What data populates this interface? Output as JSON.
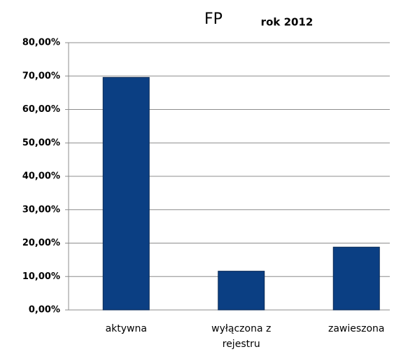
{
  "chart_data": {
    "type": "bar",
    "title": "FP",
    "subtitle": "rok 2012",
    "categories": [
      "aktywna",
      "wyłączona z rejestru",
      "zawieszona"
    ],
    "values": [
      69.6,
      11.6,
      18.8
    ],
    "color": "#0b3f83",
    "ylim": [
      0,
      80
    ],
    "yticks": [
      {
        "value": 0,
        "label": "0,00%"
      },
      {
        "value": 10,
        "label": "10,00%"
      },
      {
        "value": 20,
        "label": "20,00%"
      },
      {
        "value": 30,
        "label": "30,00%"
      },
      {
        "value": 40,
        "label": "40,00%"
      },
      {
        "value": 50,
        "label": "50,00%"
      },
      {
        "value": 60,
        "label": "60,00%"
      },
      {
        "value": 70,
        "label": "70,00%"
      },
      {
        "value": 80,
        "label": "80,00%"
      }
    ],
    "grid": true
  }
}
